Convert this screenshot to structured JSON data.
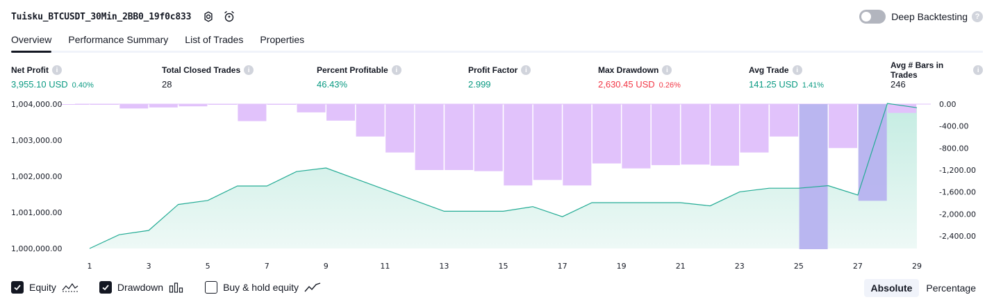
{
  "header": {
    "strategy_title": "Tuisku_BTCUSDT_30Min_2BB0_19f0c833",
    "deep_backtesting_label": "Deep Backtesting",
    "deep_backtesting_enabled": false,
    "settings_icon": "gear-icon",
    "alert_icon": "alarm-clock-plus-icon",
    "help_icon": "question-icon"
  },
  "tabs": [
    {
      "label": "Overview",
      "active": true
    },
    {
      "label": "Performance Summary",
      "active": false
    },
    {
      "label": "List of Trades",
      "active": false
    },
    {
      "label": "Properties",
      "active": false
    }
  ],
  "metrics": {
    "net_profit": {
      "label": "Net Profit",
      "value": "3,955.10 USD",
      "pct": "0.40%"
    },
    "total_closed_trades": {
      "label": "Total Closed Trades",
      "value": "28"
    },
    "percent_profitable": {
      "label": "Percent Profitable",
      "value": "46.43%"
    },
    "profit_factor": {
      "label": "Profit Factor",
      "value": "2.999"
    },
    "max_drawdown": {
      "label": "Max Drawdown",
      "value": "2,630.45 USD",
      "pct": "0.26%"
    },
    "avg_trade": {
      "label": "Avg Trade",
      "value": "141.25 USD",
      "pct": "1.41%"
    },
    "avg_bars": {
      "label": "Avg # Bars in Trades",
      "value": "246"
    }
  },
  "colors": {
    "equity_line": "#22ab94",
    "equity_fill_top": "#c4ece2",
    "equity_fill_bottom": "#eef9f6",
    "drawdown_bar": "#e1c2fb",
    "overlap_bar": "#b6b2ef",
    "green": "#089981",
    "red": "#f23645"
  },
  "chart_data": {
    "type": "area",
    "x": [
      1,
      2,
      3,
      4,
      5,
      6,
      7,
      8,
      9,
      10,
      11,
      12,
      13,
      14,
      15,
      16,
      17,
      18,
      19,
      20,
      21,
      22,
      23,
      24,
      25,
      26,
      27,
      28,
      29
    ],
    "x_tick_labels": [
      "1",
      "3",
      "5",
      "7",
      "9",
      "11",
      "13",
      "15",
      "17",
      "19",
      "21",
      "23",
      "25",
      "27",
      "29"
    ],
    "equity_axis": {
      "ylim": [
        1000000,
        1004000
      ],
      "tick_labels": [
        "1,004,000.00",
        "1,003,000.00",
        "1,002,000.00",
        "1,001,000.00",
        "1,000,000.00"
      ],
      "tick_values": [
        1004000,
        1003000,
        1002000,
        1001000,
        1000000
      ]
    },
    "drawdown_axis": {
      "ylim": [
        -2640,
        0
      ],
      "tick_labels": [
        "0.00",
        "-400.00",
        "-800.00",
        "-1,200.00",
        "-1,600.00",
        "-2,000.00",
        "-2,400.00"
      ],
      "tick_values": [
        0,
        -400,
        -800,
        -1200,
        -1600,
        -2000,
        -2400
      ]
    },
    "series": [
      {
        "name": "Equity",
        "values": [
          1000000,
          1000380,
          1000500,
          1001220,
          1001330,
          1001730,
          1001730,
          1002130,
          1002230,
          1001930,
          1001630,
          1001330,
          1001030,
          1001030,
          1001030,
          1001160,
          1000880,
          1001270,
          1001270,
          1001270,
          1001270,
          1001180,
          1001570,
          1001670,
          1001670,
          1001740,
          1001480,
          1004020,
          1003900
        ]
      },
      {
        "name": "Drawdown",
        "values": [
          -10,
          -10,
          -80,
          -60,
          -40,
          -10,
          -310,
          -10,
          -150,
          -300,
          -590,
          -880,
          -1200,
          -1200,
          -1220,
          -1480,
          -1380,
          -1480,
          -1080,
          -1170,
          -1110,
          -1100,
          -1120,
          -880,
          -590,
          -2640,
          -800,
          -1760,
          -160
        ]
      }
    ],
    "grid": false
  },
  "legend": [
    {
      "label": "Equity",
      "checked": true,
      "icon": "equity-line-icon"
    },
    {
      "label": "Drawdown",
      "checked": true,
      "icon": "drawdown-bars-icon"
    },
    {
      "label": "Buy & hold equity",
      "checked": false,
      "icon": "buy-hold-line-icon"
    }
  ],
  "mode": {
    "options": [
      "Absolute",
      "Percentage"
    ],
    "selected": "Absolute"
  }
}
